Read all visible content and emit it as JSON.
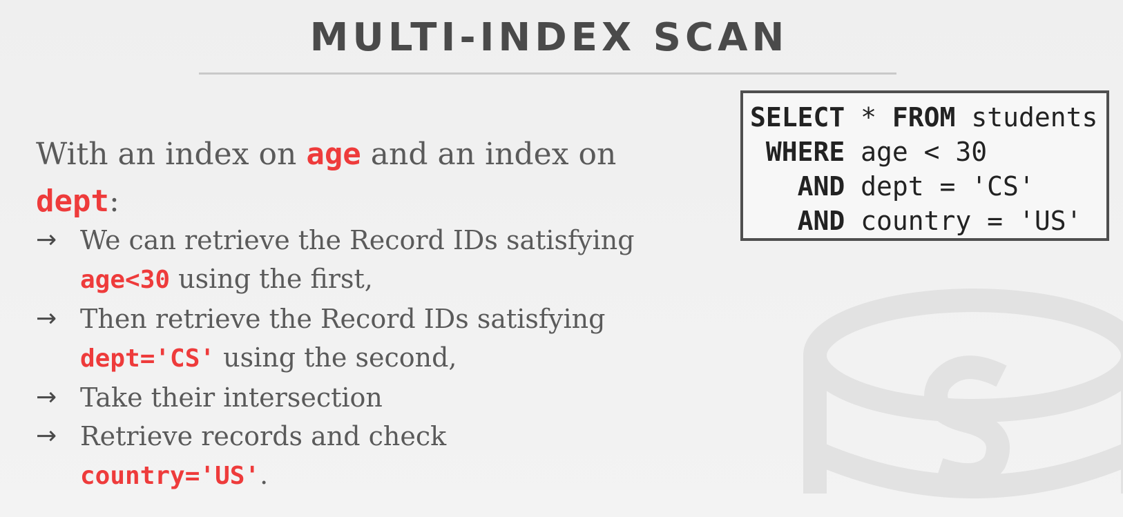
{
  "slide": {
    "title": "MULTI-INDEX SCAN",
    "intro": {
      "part1": "With an index on ",
      "kw1": "age",
      "part2": " and an index on ",
      "kw2": "dept",
      "part3": ":"
    },
    "bullets": [
      {
        "arrow": "→",
        "text": "We can retrieve the Record IDs satisfying ",
        "kw": "age<30",
        "after": " using the first,"
      },
      {
        "arrow": "→",
        "text": "Then retrieve the Record IDs satisfying ",
        "kw": "dept='CS'",
        "after": " using the second,"
      },
      {
        "arrow": "→",
        "text": "Take their intersection",
        "kw": "",
        "after": ""
      },
      {
        "arrow": "→",
        "text": "Retrieve records and check ",
        "kw": "country='US'",
        "after": "."
      }
    ],
    "sql": {
      "line1_kw1": "SELECT",
      "line1_mid": " * ",
      "line1_kw2": "FROM",
      "line1_rest": " students",
      "line2_indent": " ",
      "line2_kw": "WHERE",
      "line2_rest": " age < 30",
      "line3_indent": "   ",
      "line3_kw": "AND",
      "line3_rest": " dept = 'CS'",
      "line4_indent": "   ",
      "line4_kw": "AND",
      "line4_rest": " country = 'US'"
    },
    "colors": {
      "keyword": "#ee3b3b",
      "text": "#5a5a5a",
      "title": "#4a4a4a"
    },
    "icons": {
      "bullet": "arrow-right-icon",
      "watermark": "database-logo-icon"
    }
  }
}
